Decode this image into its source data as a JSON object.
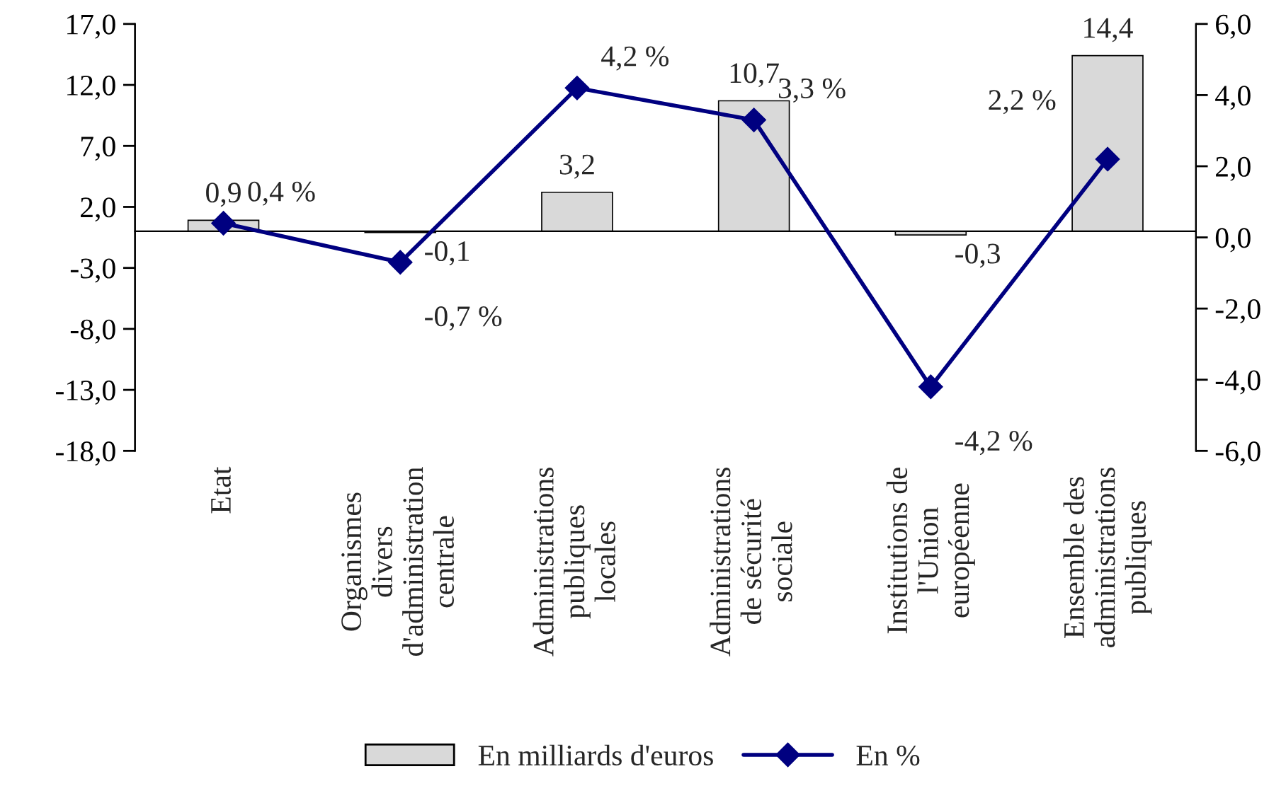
{
  "chart_data": {
    "type": "bar",
    "categories": [
      "Etat",
      "Organismes\ndivers\nd'administration\ncentrale",
      "Administrations\npubliques\nlocales",
      "Administrations\nde sécurité\nsociale",
      "Institutions de\nl'Union\neuropéenne",
      "Ensemble des\nadministrations\npubliques"
    ],
    "series": [
      {
        "name": "En milliards d'euros",
        "color": "#d9d9d9",
        "values": [
          0.9,
          -0.1,
          3.2,
          10.7,
          -0.3,
          14.4
        ],
        "value_labels": [
          "0,9",
          "-0,1",
          "3,2",
          "10,7",
          "-0,3",
          "14,4"
        ]
      },
      {
        "name": "En %",
        "type": "line",
        "axis": "y2",
        "color": "#000080",
        "marker": "diamond",
        "values": [
          0.4,
          -0.7,
          4.2,
          3.3,
          -4.2,
          2.2
        ],
        "value_labels": [
          "0,4 %",
          "-0,7 %",
          "4,2 %",
          "3,3 %",
          "-4,2 %",
          "2,2 %"
        ]
      }
    ],
    "ylim": [
      -18,
      17
    ],
    "yticks": [
      {
        "value": -18,
        "label": "-18,0"
      },
      {
        "value": -13,
        "label": "-13,0"
      },
      {
        "value": -8,
        "label": "-8,0"
      },
      {
        "value": -3,
        "label": "-3,0"
      },
      {
        "value": 2,
        "label": "2,0"
      },
      {
        "value": 7,
        "label": "7,0"
      },
      {
        "value": 12,
        "label": "12,0"
      },
      {
        "value": 17,
        "label": "17,0"
      }
    ],
    "y2lim": [
      -6,
      6
    ],
    "y2ticks": [
      {
        "value": -6,
        "label": "-6,0"
      },
      {
        "value": -4,
        "label": "-4,0"
      },
      {
        "value": -2,
        "label": "-2,0"
      },
      {
        "value": 0,
        "label": "0,0"
      },
      {
        "value": 2,
        "label": "2,0"
      },
      {
        "value": 4,
        "label": "4,0"
      },
      {
        "value": 6,
        "label": "6,0"
      }
    ],
    "grid": false,
    "legend": "bottom"
  }
}
